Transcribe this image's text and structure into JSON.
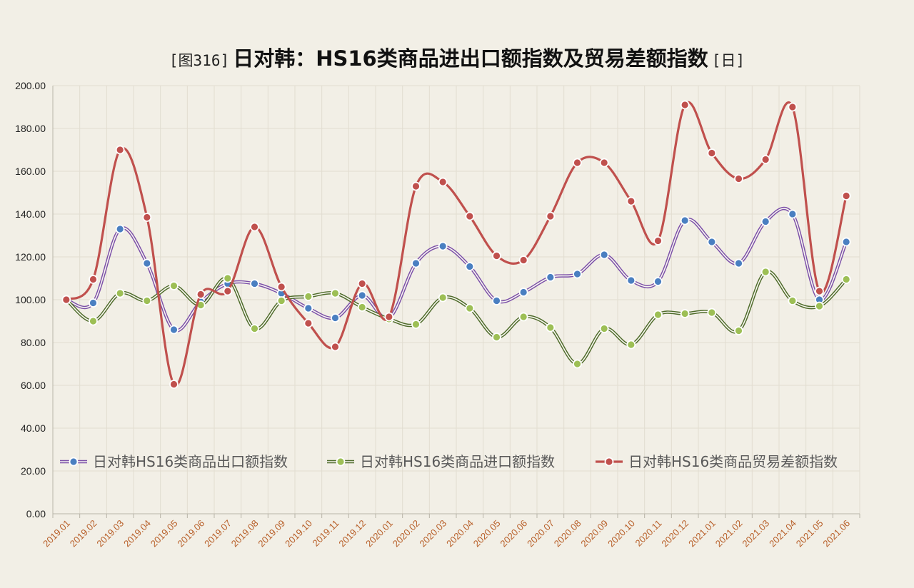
{
  "chart_data": {
    "type": "line",
    "title": {
      "prefix": "[图316]",
      "main": "日对韩：HS16类商品进出口额指数及贸易差额指数",
      "suffix": "[日]"
    },
    "x": [
      "2019.01",
      "2019.02",
      "2019.03",
      "2019.04",
      "2019.05",
      "2019.06",
      "2019.07",
      "2019.08",
      "2019.09",
      "2019.10",
      "2019.11",
      "2019.12",
      "2020.01",
      "2020.02",
      "2020.03",
      "2020.04",
      "2020.05",
      "2020.06",
      "2020.07",
      "2020.08",
      "2020.09",
      "2020.10",
      "2020.11",
      "2020.12",
      "2021.01",
      "2021.02",
      "2021.03",
      "2021.04",
      "2021.05",
      "2021.06"
    ],
    "ylim": [
      0,
      200
    ],
    "yticks": [
      "0.00",
      "20.00",
      "40.00",
      "60.00",
      "80.00",
      "100.00",
      "120.00",
      "140.00",
      "160.00",
      "180.00",
      "200.00"
    ],
    "grid": true,
    "legend_position": "bottom-inside",
    "series": [
      {
        "name": "日对韩HS16类商品出口额指数",
        "line_color": "#7b4fa8",
        "marker_color": "#4a7fc1",
        "values": [
          100,
          98.5,
          133,
          117,
          86,
          99,
          107.5,
          107.5,
          103,
          96,
          91.5,
          102,
          91.5,
          117,
          125,
          115.5,
          99.5,
          103.5,
          110.5,
          112,
          121,
          109,
          108.5,
          137,
          127,
          117,
          136.5,
          140,
          100,
          127
        ]
      },
      {
        "name": "日对韩HS16类商品进口额指数",
        "line_color": "#4e6b2a",
        "marker_color": "#9dbf55",
        "values": [
          100,
          90,
          103,
          99.5,
          106.5,
          97.5,
          110,
          86.5,
          99.5,
          101.5,
          103,
          96.5,
          91,
          88.5,
          101,
          96,
          82.5,
          92,
          87,
          70,
          86.5,
          79,
          93,
          93.5,
          94,
          85.5,
          113,
          99.5,
          97,
          109.5
        ]
      },
      {
        "name": "日对韩HS16类商品贸易差额指数",
        "line_color": "#c0504d",
        "marker_color": "#c0504d",
        "values": [
          100,
          109.5,
          170,
          138.5,
          60.5,
          102.5,
          104,
          134,
          106,
          89,
          78,
          107.5,
          92,
          153,
          155,
          139,
          120.5,
          118.5,
          139,
          164,
          164,
          146,
          127.5,
          191,
          168.5,
          156.5,
          165.5,
          190,
          104,
          148.5
        ]
      }
    ]
  }
}
